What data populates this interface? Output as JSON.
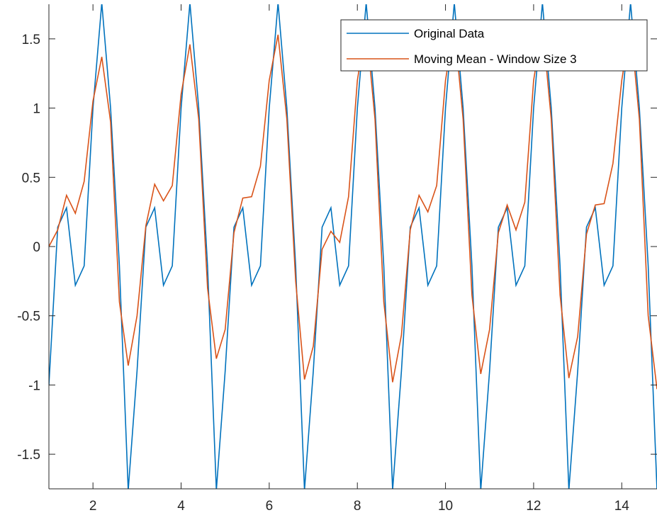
{
  "chart_data": {
    "type": "line",
    "title": "",
    "xlabel": "",
    "ylabel": "",
    "xlim": [
      1,
      14.8
    ],
    "ylim": [
      -1.75,
      1.75
    ],
    "xticks": [
      2,
      4,
      6,
      8,
      10,
      12,
      14
    ],
    "yticks": [
      -1.5,
      -1,
      -0.5,
      0,
      0.5,
      1,
      1.5
    ],
    "grid": false,
    "legend_placement": "top-right",
    "x": [
      1.0,
      1.2,
      1.4,
      1.6,
      1.8,
      2.0,
      2.2,
      2.4,
      2.6,
      2.8,
      3.0,
      3.2,
      3.4,
      3.6,
      3.8,
      4.0,
      4.2,
      4.4,
      4.6,
      4.8,
      5.0,
      5.2,
      5.4,
      5.6,
      5.8,
      6.0,
      6.2,
      6.4,
      6.6,
      6.8,
      7.0,
      7.2,
      7.4,
      7.6,
      7.8,
      8.0,
      8.2,
      8.4,
      8.6,
      8.8,
      9.0,
      9.2,
      9.4,
      9.6,
      9.8,
      10.0,
      10.2,
      10.4,
      10.6,
      10.8,
      11.0,
      11.2,
      11.4,
      11.6,
      11.8,
      12.0,
      12.2,
      12.4,
      12.6,
      12.8,
      13.0,
      13.2,
      13.4,
      13.6,
      13.8,
      14.0,
      14.2,
      14.4,
      14.6,
      14.8
    ],
    "series": [
      {
        "name": "Original Data",
        "color": "#0072BD",
        "values": [
          -1.0,
          0.14,
          0.28,
          -0.28,
          -0.14,
          1.0,
          1.76,
          1.0,
          -0.14,
          -1.76,
          -0.9,
          0.14,
          0.28,
          -0.28,
          -0.14,
          1.0,
          1.76,
          1.0,
          -0.14,
          -1.76,
          -0.9,
          0.14,
          0.28,
          -0.28,
          -0.14,
          1.0,
          1.76,
          1.0,
          -0.14,
          -1.76,
          -0.9,
          0.14,
          0.28,
          -0.28,
          -0.14,
          1.0,
          1.76,
          1.0,
          -0.14,
          -1.76,
          -0.9,
          0.14,
          0.28,
          -0.28,
          -0.14,
          1.0,
          1.76,
          1.0,
          -0.14,
          -1.76,
          -0.9,
          0.14,
          0.28,
          -0.28,
          -0.14,
          1.0,
          1.76,
          1.0,
          -0.14,
          -1.76,
          -0.9,
          0.14,
          0.28,
          -0.28,
          -0.14,
          1.0,
          1.76,
          1.0,
          -0.14,
          -1.76
        ]
      },
      {
        "name": "Moving Mean - Window Size 3",
        "color": "#D95319",
        "values": [
          0.0,
          0.12,
          0.37,
          0.24,
          0.47,
          1.05,
          1.37,
          0.9,
          -0.4,
          -0.86,
          -0.5,
          0.15,
          0.45,
          0.33,
          0.44,
          1.1,
          1.46,
          0.92,
          -0.3,
          -0.81,
          -0.6,
          0.1,
          0.35,
          0.36,
          0.58,
          1.2,
          1.53,
          0.92,
          -0.25,
          -0.96,
          -0.72,
          -0.02,
          0.11,
          0.03,
          0.36,
          1.2,
          1.6,
          0.92,
          -0.4,
          -0.98,
          -0.64,
          0.12,
          0.37,
          0.25,
          0.44,
          1.2,
          1.6,
          0.92,
          -0.35,
          -0.92,
          -0.6,
          0.1,
          0.3,
          0.12,
          0.32,
          1.2,
          1.6,
          0.92,
          -0.35,
          -0.95,
          -0.65,
          0.09,
          0.3,
          0.31,
          0.6,
          1.2,
          1.6,
          0.92,
          -0.5,
          -1.03
        ]
      }
    ]
  }
}
